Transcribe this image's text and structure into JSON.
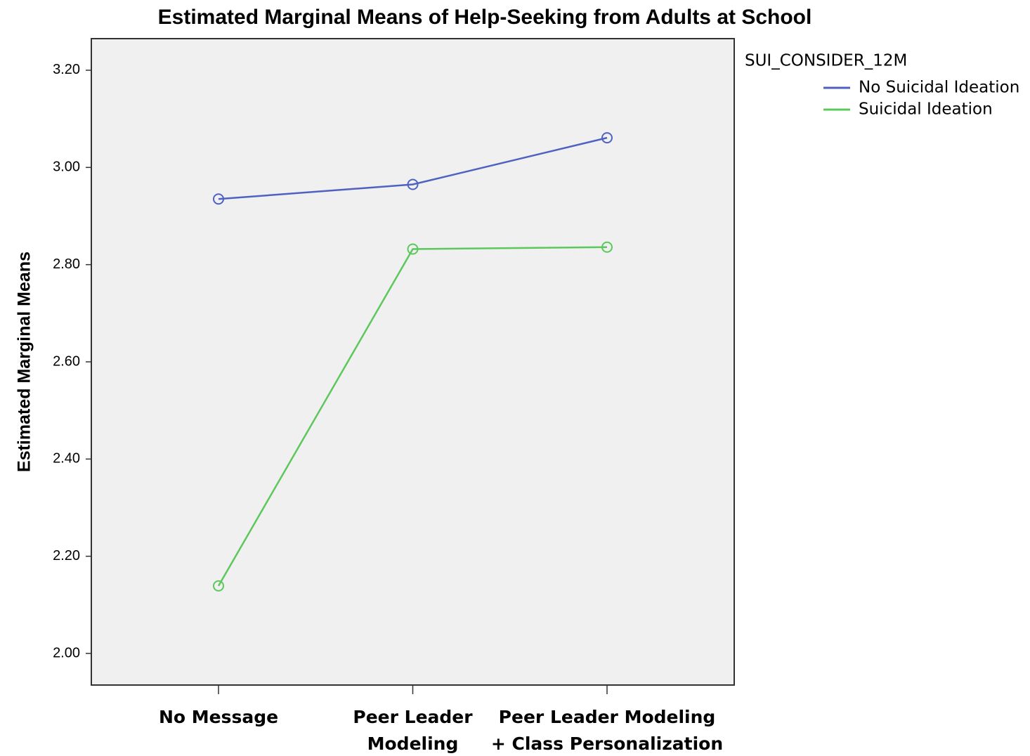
{
  "chart_data": {
    "type": "line",
    "title": "Estimated Marginal Means of Help-Seeking from Adults at School",
    "y_label": "Estimated Marginal Means",
    "legend_title": "SUI_CONSIDER_12M",
    "categories": [
      [
        "No Message"
      ],
      [
        "Peer Leader",
        "Modeling"
      ],
      [
        "Peer Leader Modeling",
        "+ Class Personalization"
      ]
    ],
    "series": [
      {
        "name": "No Suicidal Ideation",
        "color": "#4f61c1",
        "values": [
          2.935,
          2.965,
          3.061
        ]
      },
      {
        "name": "Suicidal Ideation",
        "color": "#5cc85c",
        "values": [
          2.139,
          2.832,
          2.836
        ]
      }
    ],
    "ylim": [
      1.935,
      3.265
    ],
    "yticks": [
      {
        "value": 2.0,
        "label": "2.00"
      },
      {
        "value": 2.2,
        "label": "2.20"
      },
      {
        "value": 2.4,
        "label": "2.40"
      },
      {
        "value": 2.6,
        "label": "2.60"
      },
      {
        "value": 2.8,
        "label": "2.80"
      },
      {
        "value": 3.0,
        "label": "3.00"
      },
      {
        "value": 3.2,
        "label": "3.20"
      }
    ],
    "legend": "top-right",
    "marker": "circle"
  }
}
